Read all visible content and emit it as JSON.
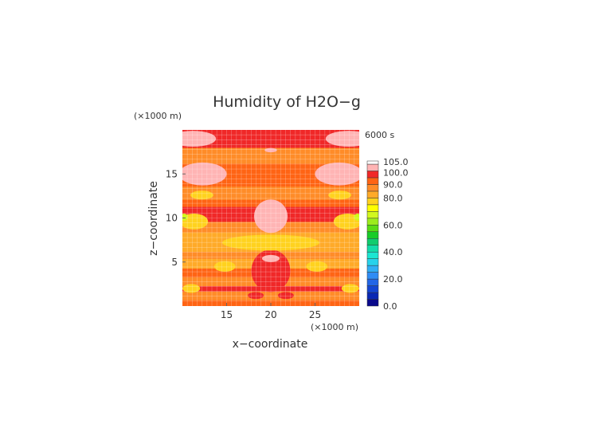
{
  "chart_data": {
    "type": "heatmap",
    "title": "Humidity of H2O−g",
    "xlabel": "x−coordinate",
    "ylabel": "z−coordinate",
    "x_unit": "(×1000 m)",
    "y_unit": "(×1000 m)",
    "time_label": "6000 s",
    "xlim": [
      10,
      30
    ],
    "ylim": [
      0,
      20
    ],
    "xticks": [
      15,
      20,
      25
    ],
    "yticks": [
      5,
      10,
      15
    ],
    "grid": true,
    "colorbar": {
      "levels": [
        0,
        5,
        10,
        15,
        20,
        25,
        30,
        35,
        40,
        45,
        50,
        55,
        60,
        65,
        70,
        75,
        80,
        85,
        90,
        95,
        100,
        105
      ],
      "labels": [
        "0.0",
        "20.0",
        "40.0",
        "60.0",
        "80.0",
        "90.0",
        "100.0",
        "105.0"
      ],
      "label_values": [
        0,
        20,
        40,
        60,
        80,
        90,
        100,
        105
      ],
      "colors": [
        "#0a0a8c",
        "#0a28b4",
        "#1446d2",
        "#2366e6",
        "#2f8cf5",
        "#31aef5",
        "#28d2eb",
        "#1be6d2",
        "#13dcaa",
        "#10cc6e",
        "#18cc28",
        "#5adc14",
        "#9cec1c",
        "#d2f81e",
        "#ffff00",
        "#ffd21e",
        "#ffaa28",
        "#ff8c28",
        "#ff6414",
        "#f02828",
        "#ffb4b4"
      ]
    },
    "bands": [
      {
        "z": [
          0.0,
          0.7
        ],
        "value": 94
      },
      {
        "z": [
          0.7,
          1.7
        ],
        "value": 88
      },
      {
        "z": [
          1.7,
          2.3
        ],
        "value": 97
      },
      {
        "z": [
          2.3,
          3.3
        ],
        "value": 86
      },
      {
        "z": [
          3.3,
          4.3
        ],
        "value": 91
      },
      {
        "z": [
          4.3,
          5.4
        ],
        "value": 83
      },
      {
        "z": [
          5.4,
          6.2
        ],
        "value": 88
      },
      {
        "z": [
          6.2,
          7.4
        ],
        "value": 80
      },
      {
        "z": [
          7.4,
          8.4
        ],
        "value": 83
      },
      {
        "z": [
          8.4,
          9.6
        ],
        "value": 88
      },
      {
        "z": [
          9.6,
          11.3
        ],
        "value": 96
      },
      {
        "z": [
          11.3,
          12.1
        ],
        "value": 90
      },
      {
        "z": [
          12.1,
          13.6
        ],
        "value": 87
      },
      {
        "z": [
          13.6,
          16.2
        ],
        "value": 92
      },
      {
        "z": [
          16.2,
          18.0
        ],
        "value": 88
      },
      {
        "z": [
          18.0,
          20.0
        ],
        "value": 97
      }
    ],
    "blobs": [
      {
        "cx": 20.0,
        "cz": 10.2,
        "rx": 1.9,
        "rz": 1.9,
        "value": 101
      },
      {
        "cx": 20.0,
        "cz": 4.0,
        "rx": 0.8,
        "rz": 1.3,
        "value": 101
      },
      {
        "cx": 20.0,
        "cz": 4.0,
        "rx": 2.2,
        "rz": 2.4,
        "value": 97
      },
      {
        "cx": 20.0,
        "cz": 5.4,
        "rx": 1.0,
        "rz": 0.4,
        "value": 101
      },
      {
        "cx": 11.2,
        "cz": 19.0,
        "rx": 2.6,
        "rz": 0.9,
        "value": 101
      },
      {
        "cx": 28.8,
        "cz": 19.0,
        "rx": 2.6,
        "rz": 0.9,
        "value": 101
      },
      {
        "cx": 20.0,
        "cz": 17.7,
        "rx": 0.7,
        "rz": 0.25,
        "value": 101
      },
      {
        "cx": 12.3,
        "cz": 15.0,
        "rx": 2.7,
        "rz": 1.3,
        "value": 101
      },
      {
        "cx": 27.7,
        "cz": 15.0,
        "rx": 2.7,
        "rz": 1.3,
        "value": 101
      },
      {
        "cx": 11.3,
        "cz": 9.6,
        "rx": 1.6,
        "rz": 0.9,
        "value": 76
      },
      {
        "cx": 28.7,
        "cz": 9.6,
        "rx": 1.6,
        "rz": 0.9,
        "value": 76
      },
      {
        "cx": 10.2,
        "cz": 10.1,
        "rx": 0.4,
        "rz": 0.4,
        "value": 67
      },
      {
        "cx": 29.8,
        "cz": 10.1,
        "rx": 0.4,
        "rz": 0.4,
        "value": 67
      },
      {
        "cx": 20.0,
        "cz": 7.2,
        "rx": 5.5,
        "rz": 0.9,
        "value": 76
      },
      {
        "cx": 12.2,
        "cz": 12.6,
        "rx": 1.3,
        "rz": 0.5,
        "value": 78
      },
      {
        "cx": 27.8,
        "cz": 12.6,
        "rx": 1.3,
        "rz": 0.5,
        "value": 78
      },
      {
        "cx": 14.8,
        "cz": 4.5,
        "rx": 1.2,
        "rz": 0.6,
        "value": 79
      },
      {
        "cx": 25.2,
        "cz": 4.5,
        "rx": 1.2,
        "rz": 0.6,
        "value": 79
      },
      {
        "cx": 11.0,
        "cz": 2.0,
        "rx": 1.0,
        "rz": 0.5,
        "value": 79
      },
      {
        "cx": 29.0,
        "cz": 2.0,
        "rx": 1.0,
        "rz": 0.5,
        "value": 79
      },
      {
        "cx": 18.3,
        "cz": 1.2,
        "rx": 0.9,
        "rz": 0.4,
        "value": 97
      },
      {
        "cx": 21.7,
        "cz": 1.2,
        "rx": 0.9,
        "rz": 0.4,
        "value": 97
      }
    ]
  }
}
